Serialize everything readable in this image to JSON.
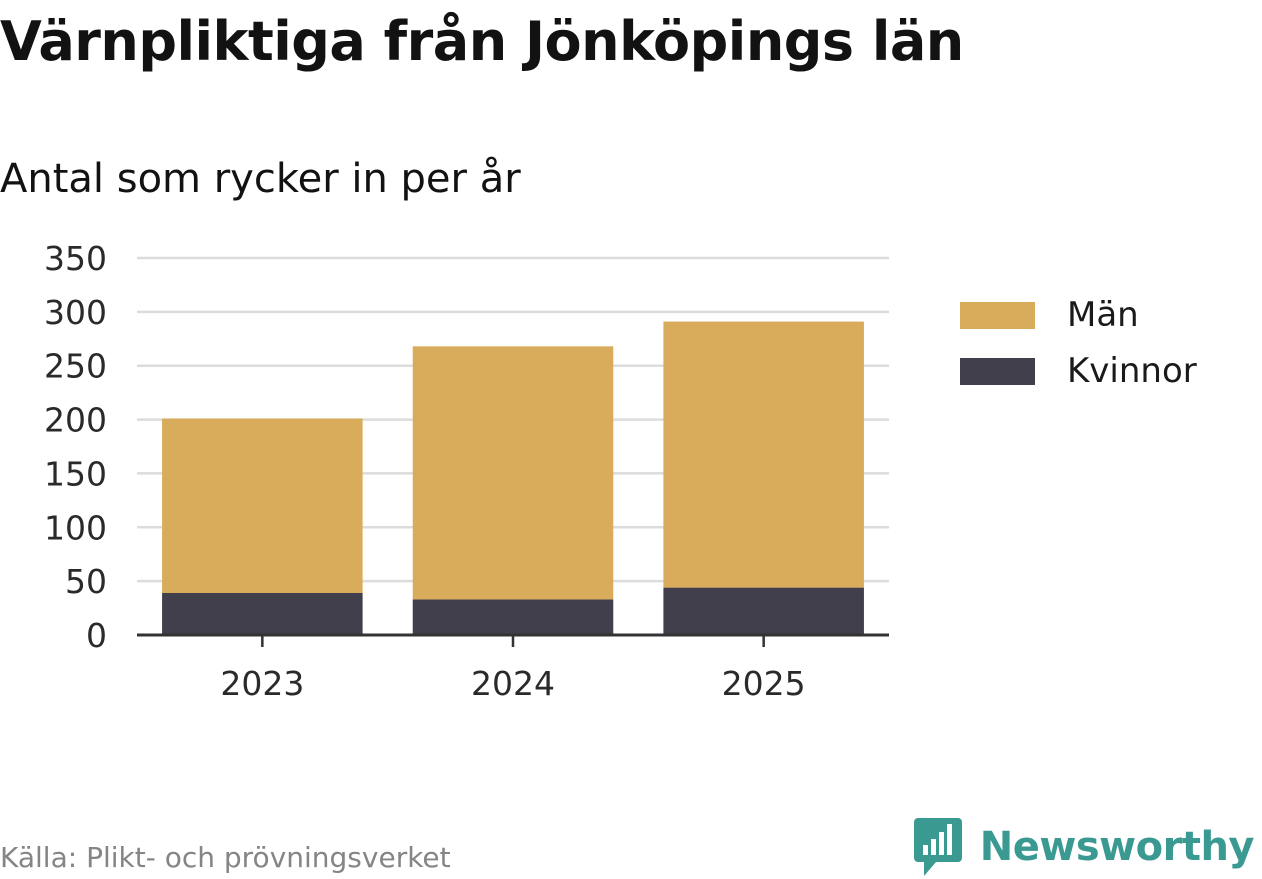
{
  "title": "Värnpliktiga från Jönköpings län",
  "subtitle": "Antal som rycker in per år",
  "source": "Källa: Plikt- och prövningsverket",
  "brand": "Newsworthy",
  "legend": {
    "items": [
      {
        "label": "Män",
        "color": "#d9ac5b"
      },
      {
        "label": "Kvinnor",
        "color": "#423f4c"
      }
    ]
  },
  "chart_data": {
    "type": "bar",
    "stacked": true,
    "categories": [
      "2023",
      "2024",
      "2025"
    ],
    "series": [
      {
        "name": "Kvinnor",
        "color": "#423f4c",
        "values": [
          39,
          33,
          44
        ]
      },
      {
        "name": "Män",
        "color": "#d9ac5b",
        "values": [
          162,
          235,
          247
        ]
      }
    ],
    "yticks": [
      0,
      50,
      100,
      150,
      200,
      250,
      300,
      350
    ],
    "ylim": [
      0,
      350
    ],
    "title": "Värnpliktiga från Jönköpings län",
    "subtitle": "Antal som rycker in per år",
    "xlabel": "",
    "ylabel": "",
    "grid": true,
    "legend_position": "right"
  }
}
